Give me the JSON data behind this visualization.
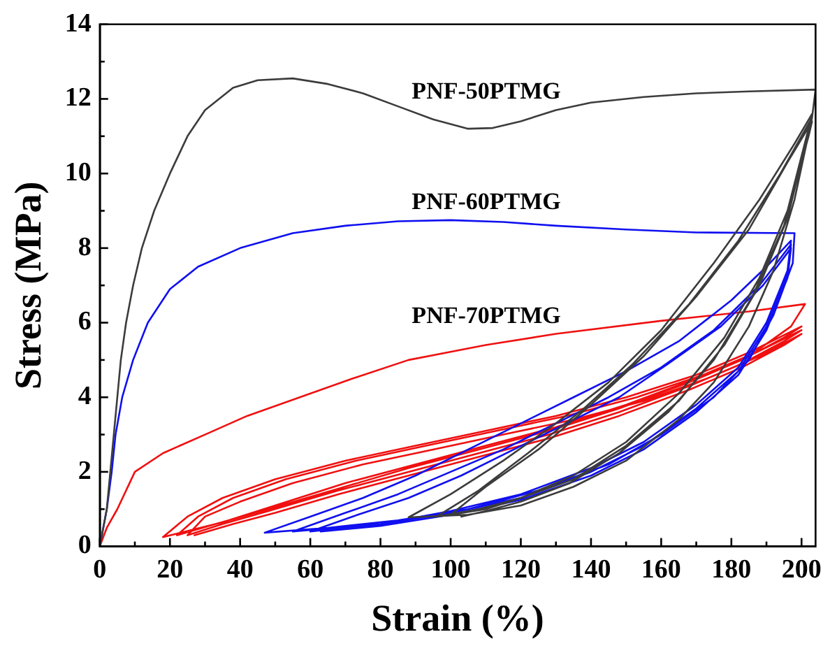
{
  "chart_data": {
    "type": "line",
    "xlabel": "Strain (%)",
    "ylabel": "Stress (MPa)",
    "xlim": [
      0,
      204
    ],
    "ylim": [
      0,
      14
    ],
    "xticks": [
      0,
      {
        "value": 10,
        "label": null
      },
      20,
      {
        "value": 30,
        "label": null
      },
      40,
      {
        "value": 50,
        "label": null
      },
      60,
      {
        "value": 70,
        "label": null
      },
      80,
      {
        "value": 90,
        "label": null
      },
      100,
      {
        "value": 110,
        "label": null
      },
      120,
      {
        "value": 130,
        "label": null
      },
      140,
      {
        "value": 150,
        "label": null
      },
      160,
      {
        "value": 170,
        "label": null
      },
      180,
      {
        "value": 190,
        "label": null
      },
      200
    ],
    "yticks": [
      0,
      {
        "value": 1,
        "label": null
      },
      2,
      {
        "value": 3,
        "label": null
      },
      4,
      {
        "value": 5,
        "label": null
      },
      6,
      {
        "value": 7,
        "label": null
      },
      8,
      {
        "value": 9,
        "label": null
      },
      10,
      {
        "value": 11,
        "label": null
      },
      12,
      {
        "value": 13,
        "label": null
      },
      14
    ],
    "grid": false,
    "legend": false,
    "marker": "none",
    "line_style": "solid",
    "series": [
      {
        "name": "PNF-50PTMG",
        "color": "#3c3c3c",
        "x": [
          0,
          2,
          3,
          4,
          5,
          6,
          7.5,
          9.5,
          12,
          15.5,
          20,
          25,
          30,
          38,
          45,
          55,
          65,
          75,
          85,
          95,
          105,
          112,
          120,
          130,
          140,
          155,
          170,
          185,
          204,
          203,
          198,
          192,
          185,
          175,
          165,
          150,
          135,
          120,
          105,
          88,
          100,
          115,
          130,
          145,
          160,
          175,
          188,
          198,
          203,
          202,
          196,
          188,
          178,
          165,
          150,
          135,
          120,
          108,
          96,
          108,
          122,
          138,
          152,
          168,
          182,
          194,
          203,
          202,
          196,
          188,
          178,
          165,
          150,
          135,
          120,
          110,
          100,
          110,
          125,
          140,
          155,
          170,
          185,
          196,
          203,
          202,
          195,
          186,
          175,
          162,
          148,
          134,
          120,
          110,
          103
        ],
        "values": [
          0,
          1,
          2,
          3,
          4,
          5,
          6,
          7,
          8,
          9,
          10,
          11,
          11.7,
          12.3,
          12.5,
          12.55,
          12.4,
          12.15,
          11.8,
          11.45,
          11.2,
          11.22,
          11.4,
          11.7,
          11.9,
          12.05,
          12.15,
          12.2,
          12.25,
          11.5,
          9.3,
          7.4,
          5.9,
          4.4,
          3.4,
          2.3,
          1.6,
          1.1,
          0.85,
          0.78,
          1.4,
          2.3,
          3.3,
          4.4,
          5.8,
          7.6,
          9.3,
          10.8,
          11.6,
          11.2,
          9,
          7.2,
          5.6,
          4.1,
          2.8,
          1.9,
          1.3,
          1,
          0.8,
          1.5,
          2.5,
          3.7,
          4.9,
          6.5,
          8.2,
          10,
          11.5,
          11.1,
          8.8,
          7,
          5.4,
          3.9,
          2.7,
          1.8,
          1.3,
          1,
          0.85,
          1.6,
          2.6,
          3.8,
          5.1,
          6.7,
          8.5,
          10.3,
          11.4,
          11,
          8.6,
          6.7,
          5,
          3.6,
          2.5,
          1.7,
          1.2,
          0.95,
          0.8
        ]
      },
      {
        "name": "PNF-60PTMG",
        "color": "#1010f0",
        "x": [
          0,
          2,
          3.4,
          4.5,
          6.4,
          9.5,
          13.7,
          20,
          28,
          40,
          55,
          70,
          85,
          100,
          115,
          130,
          150,
          170,
          198,
          197.5,
          192,
          185,
          175,
          160,
          145,
          125,
          105,
          85,
          65,
          47,
          60,
          75,
          90,
          105,
          120,
          135,
          150,
          165,
          180,
          190,
          197,
          196,
          190,
          182,
          170,
          155,
          140,
          120,
          100,
          80,
          55,
          70,
          85,
          100,
          115,
          130,
          145,
          160,
          175,
          188,
          197,
          196,
          190,
          182,
          170,
          155,
          140,
          120,
          100,
          80,
          60,
          72,
          88,
          103,
          118,
          133,
          148,
          162,
          177,
          189,
          197,
          196,
          190,
          182,
          170,
          155,
          140,
          120,
          100,
          80,
          63
        ],
        "values": [
          0,
          1,
          2,
          3,
          4,
          5,
          6,
          6.9,
          7.5,
          8,
          8.4,
          8.6,
          8.72,
          8.75,
          8.7,
          8.6,
          8.5,
          8.42,
          8.4,
          7.6,
          6.2,
          5,
          4,
          3,
          2.2,
          1.5,
          1,
          0.7,
          0.5,
          0.37,
          0.8,
          1.3,
          1.9,
          2.6,
          3.3,
          4,
          4.7,
          5.5,
          6.6,
          7.5,
          8.2,
          7.4,
          6,
          4.8,
          3.8,
          2.8,
          2.1,
          1.4,
          0.95,
          0.6,
          0.4,
          0.9,
          1.4,
          2,
          2.6,
          3.3,
          4,
          4.8,
          5.8,
          7,
          8.1,
          7.3,
          5.9,
          4.7,
          3.7,
          2.7,
          2,
          1.3,
          0.9,
          0.6,
          0.4,
          0.8,
          1.3,
          1.9,
          2.6,
          3.3,
          4,
          4.9,
          5.9,
          7,
          8,
          7.2,
          5.8,
          4.6,
          3.6,
          2.6,
          1.9,
          1.25,
          0.85,
          0.55,
          0.4
        ]
      },
      {
        "name": "PNF-70PTMG",
        "color": "#f01010",
        "x": [
          0,
          2,
          5,
          10,
          18,
          30,
          42,
          57,
          72,
          88,
          110,
          130,
          160,
          185,
          201,
          197,
          185,
          170,
          150,
          130,
          110,
          90,
          70,
          50,
          35,
          18,
          25,
          35,
          50,
          70,
          90,
          110,
          130,
          150,
          170,
          185,
          200,
          195,
          183,
          168,
          148,
          128,
          108,
          88,
          68,
          48,
          33,
          22,
          28,
          38,
          53,
          73,
          93,
          113,
          133,
          153,
          172,
          187,
          200,
          195,
          183,
          168,
          148,
          128,
          108,
          88,
          68,
          48,
          35,
          25,
          30,
          40,
          55,
          75,
          95,
          115,
          135,
          155,
          173,
          188,
          200,
          195,
          183,
          168,
          148,
          128,
          108,
          88,
          68,
          50,
          38,
          27
        ],
        "values": [
          0,
          0.5,
          1,
          2,
          2.5,
          3,
          3.5,
          4,
          4.5,
          5,
          5.4,
          5.7,
          6.05,
          6.3,
          6.5,
          5.9,
          5.1,
          4.5,
          3.8,
          3.2,
          2.7,
          2.2,
          1.7,
          1.1,
          0.65,
          0.25,
          0.8,
          1.3,
          1.8,
          2.3,
          2.7,
          3.1,
          3.5,
          4,
          4.6,
          5.2,
          5.9,
          5.6,
          5,
          4.4,
          3.7,
          3.1,
          2.6,
          2.1,
          1.55,
          1,
          0.6,
          0.3,
          0.8,
          1.3,
          1.8,
          2.3,
          2.7,
          3.1,
          3.5,
          4,
          4.6,
          5.2,
          5.8,
          5.5,
          4.9,
          4.3,
          3.6,
          3,
          2.5,
          2,
          1.5,
          0.95,
          0.6,
          0.3,
          0.8,
          1.2,
          1.7,
          2.2,
          2.6,
          3,
          3.4,
          3.9,
          4.5,
          5.1,
          5.7,
          5.4,
          4.8,
          4.2,
          3.5,
          2.9,
          2.4,
          1.9,
          1.4,
          0.9,
          0.6,
          0.3
        ]
      }
    ]
  }
}
